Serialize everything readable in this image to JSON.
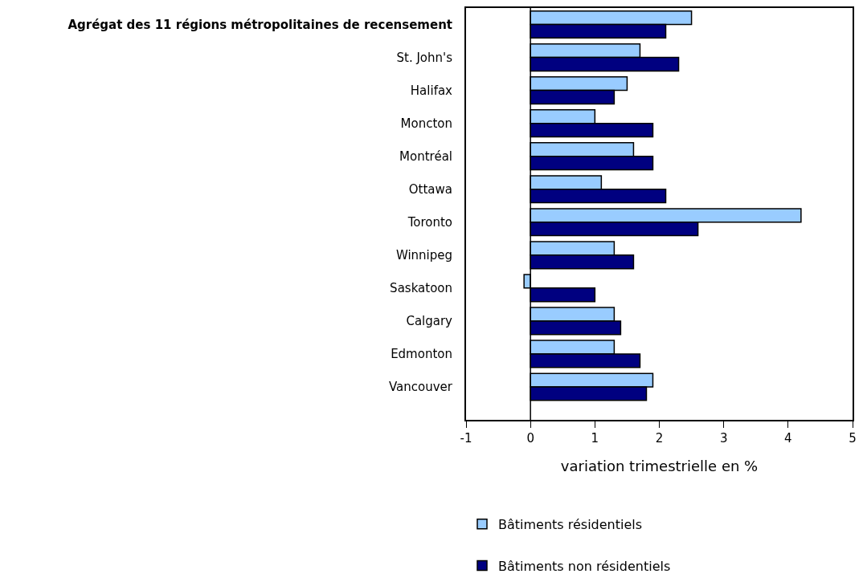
{
  "chart_data": {
    "type": "bar",
    "orientation": "horizontal",
    "categories": [
      "Agrégat des 11 régions métropolitaines de recensement",
      "St. John's",
      "Halifax",
      "Moncton",
      "Montréal",
      "Ottawa",
      "Toronto",
      "Winnipeg",
      "Saskatoon",
      "Calgary",
      "Edmonton",
      "Vancouver"
    ],
    "series": [
      {
        "name": "Bâtiments résidentiels",
        "color": "#99ccff",
        "values": [
          2.5,
          1.7,
          1.5,
          1.0,
          1.6,
          1.1,
          4.2,
          1.3,
          -0.1,
          1.3,
          1.3,
          1.9
        ]
      },
      {
        "name": "Bâtiments non résidentiels",
        "color": "#000080",
        "values": [
          2.1,
          2.3,
          1.3,
          1.9,
          1.9,
          2.1,
          2.6,
          1.6,
          1.0,
          1.4,
          1.7,
          1.8
        ]
      }
    ],
    "xlabel": "variation trimestrielle en %",
    "xlim": [
      -1,
      5
    ],
    "xticks": [
      -1,
      0,
      1,
      2,
      3,
      4,
      5
    ],
    "ref_lines": [
      {
        "axis": "x",
        "value": 0,
        "color": "#000000"
      }
    ],
    "legend": "bottom"
  }
}
